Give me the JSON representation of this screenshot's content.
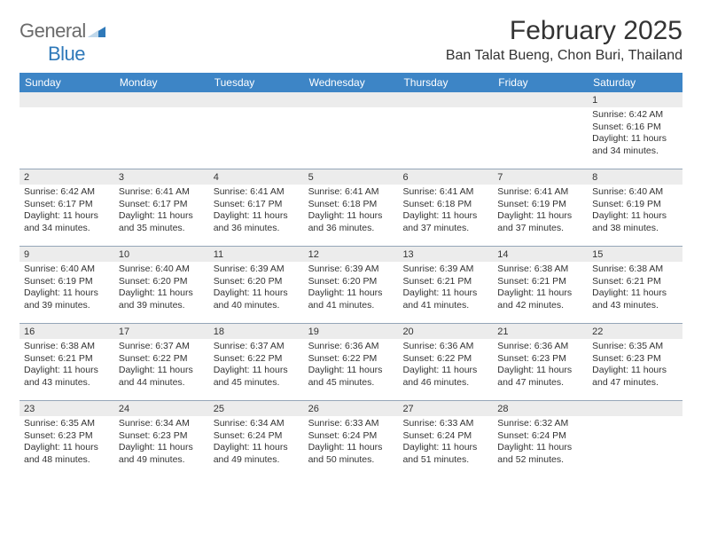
{
  "logo": {
    "general": "General",
    "blue": "Blue"
  },
  "title": "February 2025",
  "location": "Ban Talat Bueng, Chon Buri, Thailand",
  "colors": {
    "header_bg": "#3d85c6",
    "daynum_bg": "#ececec",
    "divider": "#95a6b8",
    "logo_gray": "#6b6b6b",
    "logo_blue": "#2f79b9"
  },
  "weekdays": [
    "Sunday",
    "Monday",
    "Tuesday",
    "Wednesday",
    "Thursday",
    "Friday",
    "Saturday"
  ],
  "weeks": [
    [
      {
        "day": "",
        "lines": []
      },
      {
        "day": "",
        "lines": []
      },
      {
        "day": "",
        "lines": []
      },
      {
        "day": "",
        "lines": []
      },
      {
        "day": "",
        "lines": []
      },
      {
        "day": "",
        "lines": []
      },
      {
        "day": "1",
        "lines": [
          "Sunrise: 6:42 AM",
          "Sunset: 6:16 PM",
          "Daylight: 11 hours and 34 minutes."
        ]
      }
    ],
    [
      {
        "day": "2",
        "lines": [
          "Sunrise: 6:42 AM",
          "Sunset: 6:17 PM",
          "Daylight: 11 hours and 34 minutes."
        ]
      },
      {
        "day": "3",
        "lines": [
          "Sunrise: 6:41 AM",
          "Sunset: 6:17 PM",
          "Daylight: 11 hours and 35 minutes."
        ]
      },
      {
        "day": "4",
        "lines": [
          "Sunrise: 6:41 AM",
          "Sunset: 6:17 PM",
          "Daylight: 11 hours and 36 minutes."
        ]
      },
      {
        "day": "5",
        "lines": [
          "Sunrise: 6:41 AM",
          "Sunset: 6:18 PM",
          "Daylight: 11 hours and 36 minutes."
        ]
      },
      {
        "day": "6",
        "lines": [
          "Sunrise: 6:41 AM",
          "Sunset: 6:18 PM",
          "Daylight: 11 hours and 37 minutes."
        ]
      },
      {
        "day": "7",
        "lines": [
          "Sunrise: 6:41 AM",
          "Sunset: 6:19 PM",
          "Daylight: 11 hours and 37 minutes."
        ]
      },
      {
        "day": "8",
        "lines": [
          "Sunrise: 6:40 AM",
          "Sunset: 6:19 PM",
          "Daylight: 11 hours and 38 minutes."
        ]
      }
    ],
    [
      {
        "day": "9",
        "lines": [
          "Sunrise: 6:40 AM",
          "Sunset: 6:19 PM",
          "Daylight: 11 hours and 39 minutes."
        ]
      },
      {
        "day": "10",
        "lines": [
          "Sunrise: 6:40 AM",
          "Sunset: 6:20 PM",
          "Daylight: 11 hours and 39 minutes."
        ]
      },
      {
        "day": "11",
        "lines": [
          "Sunrise: 6:39 AM",
          "Sunset: 6:20 PM",
          "Daylight: 11 hours and 40 minutes."
        ]
      },
      {
        "day": "12",
        "lines": [
          "Sunrise: 6:39 AM",
          "Sunset: 6:20 PM",
          "Daylight: 11 hours and 41 minutes."
        ]
      },
      {
        "day": "13",
        "lines": [
          "Sunrise: 6:39 AM",
          "Sunset: 6:21 PM",
          "Daylight: 11 hours and 41 minutes."
        ]
      },
      {
        "day": "14",
        "lines": [
          "Sunrise: 6:38 AM",
          "Sunset: 6:21 PM",
          "Daylight: 11 hours and 42 minutes."
        ]
      },
      {
        "day": "15",
        "lines": [
          "Sunrise: 6:38 AM",
          "Sunset: 6:21 PM",
          "Daylight: 11 hours and 43 minutes."
        ]
      }
    ],
    [
      {
        "day": "16",
        "lines": [
          "Sunrise: 6:38 AM",
          "Sunset: 6:21 PM",
          "Daylight: 11 hours and 43 minutes."
        ]
      },
      {
        "day": "17",
        "lines": [
          "Sunrise: 6:37 AM",
          "Sunset: 6:22 PM",
          "Daylight: 11 hours and 44 minutes."
        ]
      },
      {
        "day": "18",
        "lines": [
          "Sunrise: 6:37 AM",
          "Sunset: 6:22 PM",
          "Daylight: 11 hours and 45 minutes."
        ]
      },
      {
        "day": "19",
        "lines": [
          "Sunrise: 6:36 AM",
          "Sunset: 6:22 PM",
          "Daylight: 11 hours and 45 minutes."
        ]
      },
      {
        "day": "20",
        "lines": [
          "Sunrise: 6:36 AM",
          "Sunset: 6:22 PM",
          "Daylight: 11 hours and 46 minutes."
        ]
      },
      {
        "day": "21",
        "lines": [
          "Sunrise: 6:36 AM",
          "Sunset: 6:23 PM",
          "Daylight: 11 hours and 47 minutes."
        ]
      },
      {
        "day": "22",
        "lines": [
          "Sunrise: 6:35 AM",
          "Sunset: 6:23 PM",
          "Daylight: 11 hours and 47 minutes."
        ]
      }
    ],
    [
      {
        "day": "23",
        "lines": [
          "Sunrise: 6:35 AM",
          "Sunset: 6:23 PM",
          "Daylight: 11 hours and 48 minutes."
        ]
      },
      {
        "day": "24",
        "lines": [
          "Sunrise: 6:34 AM",
          "Sunset: 6:23 PM",
          "Daylight: 11 hours and 49 minutes."
        ]
      },
      {
        "day": "25",
        "lines": [
          "Sunrise: 6:34 AM",
          "Sunset: 6:24 PM",
          "Daylight: 11 hours and 49 minutes."
        ]
      },
      {
        "day": "26",
        "lines": [
          "Sunrise: 6:33 AM",
          "Sunset: 6:24 PM",
          "Daylight: 11 hours and 50 minutes."
        ]
      },
      {
        "day": "27",
        "lines": [
          "Sunrise: 6:33 AM",
          "Sunset: 6:24 PM",
          "Daylight: 11 hours and 51 minutes."
        ]
      },
      {
        "day": "28",
        "lines": [
          "Sunrise: 6:32 AM",
          "Sunset: 6:24 PM",
          "Daylight: 11 hours and 52 minutes."
        ]
      },
      {
        "day": "",
        "lines": []
      }
    ]
  ]
}
